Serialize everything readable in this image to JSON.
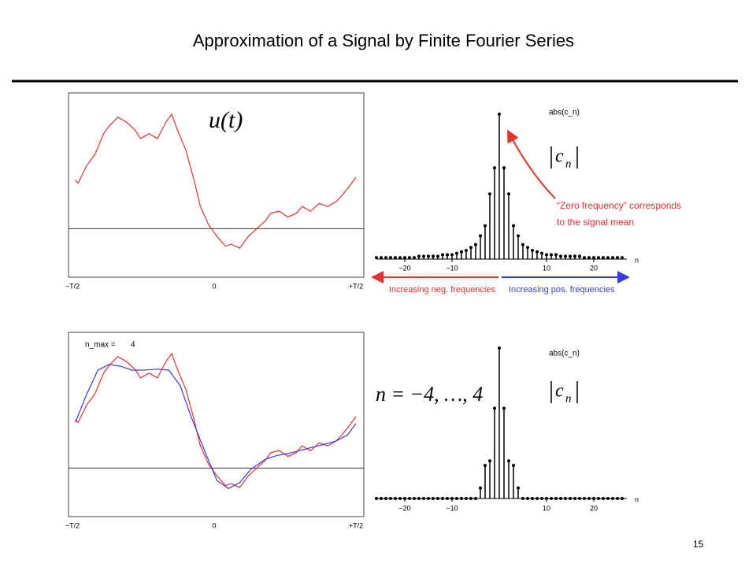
{
  "title": "Approximation of a Signal by Finite Fourier Series",
  "page_number": 15,
  "chart_data": [
    {
      "type": "line",
      "annotation": "u(t)",
      "x": [
        -0.49,
        -0.48,
        -0.45,
        -0.42,
        -0.39,
        -0.37,
        -0.34,
        -0.31,
        -0.28,
        -0.26,
        -0.23,
        -0.2,
        -0.17,
        -0.15,
        -0.13,
        -0.1,
        -0.07,
        -0.05,
        -0.02,
        0.01,
        0.04,
        0.06,
        0.09,
        0.12,
        0.15,
        0.18,
        0.2,
        0.23,
        0.26,
        0.29,
        0.31,
        0.34,
        0.37,
        0.4,
        0.43,
        0.45,
        0.48,
        0.5
      ],
      "series": [
        {
          "color": "#e8312f",
          "values": [
            0.5,
            0.47,
            0.65,
            0.77,
            0.98,
            1.06,
            1.15,
            1.1,
            1.02,
            0.93,
            0.98,
            0.93,
            1.1,
            1.18,
            1.02,
            0.81,
            0.49,
            0.24,
            0.04,
            -0.08,
            -0.18,
            -0.16,
            -0.2,
            -0.08,
            0,
            0.08,
            0.16,
            0.18,
            0.12,
            0.16,
            0.23,
            0.18,
            0.26,
            0.23,
            0.28,
            0.34,
            0.45,
            0.53
          ]
        }
      ],
      "xlim": [
        -0.5,
        0.5
      ],
      "ylim": [
        -0.5,
        1.4
      ],
      "xticks": [
        {
          "value": -0.5,
          "label": "−T/2"
        },
        0,
        {
          "value": 0.5,
          "label": "+T/2"
        }
      ],
      "hline": 0
    },
    {
      "type": "stem",
      "annotation": "abs(c_n)",
      "symbol": {
        "base": "c",
        "sub": "n"
      },
      "xlabel": "n",
      "note": [
        "“Zero frequency” corresponds",
        "to the signal mean"
      ],
      "neg_label": "Increasing neg. frequencies",
      "pos_label": "Increasing pos. frequencies",
      "x": [
        -26,
        -25,
        -24,
        -23,
        -22,
        -21,
        -20,
        -19,
        -18,
        -17,
        -16,
        -15,
        -14,
        -13,
        -12,
        -11,
        -10,
        -9,
        -8,
        -7,
        -6,
        -5,
        -4,
        -3,
        -2,
        -1,
        0,
        1,
        2,
        3,
        4,
        5,
        6,
        7,
        8,
        9,
        10,
        11,
        12,
        13,
        14,
        15,
        16,
        17,
        18,
        19,
        20,
        21,
        22,
        23,
        24,
        25,
        26
      ],
      "values": [
        0.01,
        0.01,
        0.01,
        0.01,
        0.01,
        0.01,
        0.01,
        0.01,
        0.01,
        0.02,
        0.02,
        0.02,
        0.02,
        0.02,
        0.03,
        0.03,
        0.03,
        0.04,
        0.05,
        0.06,
        0.08,
        0.1,
        0.16,
        0.23,
        0.45,
        0.63,
        1,
        0.63,
        0.45,
        0.23,
        0.16,
        0.1,
        0.08,
        0.06,
        0.05,
        0.04,
        0.03,
        0.03,
        0.03,
        0.02,
        0.02,
        0.02,
        0.02,
        0.02,
        0.01,
        0.01,
        0.01,
        0.01,
        0.01,
        0.01,
        0.01,
        0.01,
        0.01
      ],
      "color": "#000000",
      "xlim": [
        -26,
        27
      ],
      "ylim": [
        0,
        1
      ],
      "xticks": [
        {
          "value": -20,
          "label": "−20"
        },
        {
          "value": -10,
          "label": "−10"
        },
        10,
        20
      ]
    },
    {
      "type": "line",
      "annotation": "n_max =",
      "n_max": 4,
      "x": [
        -0.49,
        -0.48,
        -0.45,
        -0.42,
        -0.39,
        -0.37,
        -0.34,
        -0.31,
        -0.28,
        -0.26,
        -0.23,
        -0.2,
        -0.17,
        -0.15,
        -0.13,
        -0.1,
        -0.07,
        -0.05,
        -0.02,
        0.01,
        0.04,
        0.06,
        0.09,
        0.12,
        0.15,
        0.18,
        0.2,
        0.23,
        0.26,
        0.29,
        0.31,
        0.34,
        0.37,
        0.4,
        0.43,
        0.45,
        0.48,
        0.5
      ],
      "series": [
        {
          "color": "#e8312f",
          "values": [
            0.5,
            0.47,
            0.65,
            0.77,
            0.98,
            1.06,
            1.15,
            1.1,
            1.02,
            0.93,
            0.98,
            0.93,
            1.1,
            1.18,
            1.02,
            0.81,
            0.49,
            0.24,
            0.04,
            -0.08,
            -0.18,
            -0.16,
            -0.2,
            -0.08,
            0,
            0.08,
            0.16,
            0.18,
            0.12,
            0.16,
            0.23,
            0.18,
            0.26,
            0.23,
            0.28,
            0.34,
            0.45,
            0.53
          ]
        },
        {
          "color": "#3b3bdc",
          "x": [
            -0.49,
            -0.45,
            -0.41,
            -0.37,
            -0.33,
            -0.29,
            -0.25,
            -0.2,
            -0.16,
            -0.12,
            -0.08,
            -0.03,
            0.01,
            0.05,
            0.09,
            0.13,
            0.18,
            0.22,
            0.26,
            0.3,
            0.34,
            0.38,
            0.43,
            0.47,
            0.5
          ],
          "values": [
            0.47,
            0.76,
            1.01,
            1.07,
            1.05,
            1.01,
            1.01,
            1.02,
            1.01,
            0.85,
            0.52,
            0.15,
            -0.13,
            -0.21,
            -0.15,
            -0.01,
            0.09,
            0.13,
            0.15,
            0.18,
            0.21,
            0.24,
            0.28,
            0.34,
            0.46
          ]
        }
      ],
      "xlim": [
        -0.5,
        0.5
      ],
      "ylim": [
        -0.5,
        1.4
      ],
      "xticks": [
        {
          "value": -0.5,
          "label": "−T/2"
        },
        0,
        {
          "value": 0.5,
          "label": "+T/2"
        }
      ],
      "hline": 0
    },
    {
      "type": "stem",
      "annotation": "abs(c_n)",
      "symbol": {
        "base": "c",
        "sub": "n"
      },
      "xlabel": "n",
      "range_text": "n = −4, …, 4",
      "x": [
        -26,
        -25,
        -24,
        -23,
        -22,
        -21,
        -20,
        -19,
        -18,
        -17,
        -16,
        -15,
        -14,
        -13,
        -12,
        -11,
        -10,
        -9,
        -8,
        -7,
        -6,
        -5,
        -4,
        -3,
        -2,
        -1,
        0,
        1,
        2,
        3,
        4,
        5,
        6,
        7,
        8,
        9,
        10,
        11,
        12,
        13,
        14,
        15,
        16,
        17,
        18,
        19,
        20,
        21,
        22,
        23,
        24,
        25,
        26
      ],
      "values": [
        0,
        0,
        0,
        0,
        0,
        0,
        0,
        0,
        0,
        0,
        0,
        0,
        0,
        0,
        0,
        0,
        0,
        0,
        0,
        0,
        0,
        0,
        0.07,
        0.22,
        0.25,
        0.6,
        1,
        0.6,
        0.25,
        0.22,
        0.07,
        0,
        0,
        0,
        0,
        0,
        0,
        0,
        0,
        0,
        0,
        0,
        0,
        0,
        0,
        0,
        0,
        0,
        0,
        0,
        0,
        0,
        0
      ],
      "color": "#000000",
      "xlim": [
        -26,
        27
      ],
      "ylim": [
        0,
        1
      ],
      "xticks": [
        {
          "value": -20,
          "label": "−20"
        },
        {
          "value": -10,
          "label": "−10"
        },
        10,
        20
      ]
    }
  ]
}
